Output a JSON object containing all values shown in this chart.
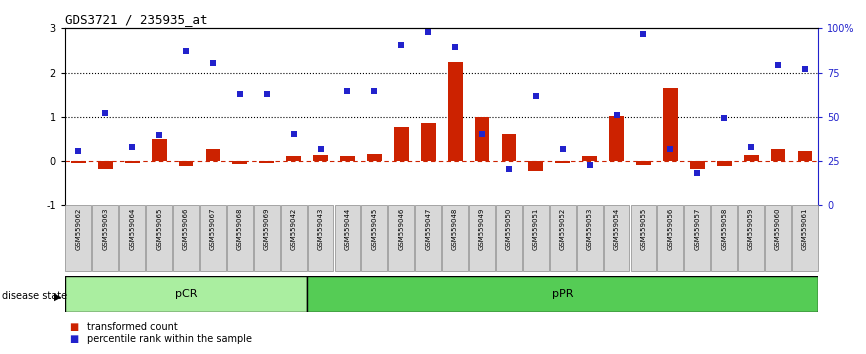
{
  "title": "GDS3721 / 235935_at",
  "samples": [
    "GSM559062",
    "GSM559063",
    "GSM559064",
    "GSM559065",
    "GSM559066",
    "GSM559067",
    "GSM559068",
    "GSM559069",
    "GSM559042",
    "GSM559043",
    "GSM559044",
    "GSM559045",
    "GSM559046",
    "GSM559047",
    "GSM559048",
    "GSM559049",
    "GSM559050",
    "GSM559051",
    "GSM559052",
    "GSM559053",
    "GSM559054",
    "GSM559055",
    "GSM559056",
    "GSM559057",
    "GSM559058",
    "GSM559059",
    "GSM559060",
    "GSM559061"
  ],
  "red_bars": [
    -0.05,
    -0.18,
    -0.04,
    0.5,
    -0.12,
    0.28,
    -0.07,
    -0.04,
    0.12,
    0.13,
    0.12,
    0.15,
    0.78,
    0.85,
    2.25,
    1.0,
    0.62,
    -0.22,
    -0.05,
    0.12,
    1.02,
    -0.1,
    1.65,
    -0.18,
    -0.12,
    0.13,
    0.28,
    0.22
  ],
  "blue_dots": [
    0.22,
    1.08,
    0.32,
    0.58,
    2.48,
    2.22,
    1.52,
    1.52,
    0.62,
    0.28,
    1.58,
    1.58,
    2.62,
    2.92,
    2.58,
    0.62,
    -0.18,
    1.48,
    0.28,
    -0.1,
    1.05,
    2.88,
    0.28,
    -0.28,
    0.98,
    0.32,
    2.18,
    2.08
  ],
  "pCR_count": 9,
  "pPR_count": 19,
  "ylim": [
    -1,
    3
  ],
  "yticks_left": [
    -1,
    0,
    1,
    2,
    3
  ],
  "yticks_right": [
    0,
    25,
    50,
    75,
    100
  ],
  "y_right_labels": [
    "0",
    "25",
    "50",
    "75",
    "100%"
  ],
  "hline_dotted": [
    1,
    2
  ],
  "red_color": "#cc2200",
  "blue_color": "#2222cc",
  "pCR_color": "#aaeea0",
  "pPR_color": "#55cc55",
  "bar_width": 0.55,
  "legend_red": "transformed count",
  "legend_blue": "percentile rank within the sample",
  "disease_state_label": "disease state"
}
